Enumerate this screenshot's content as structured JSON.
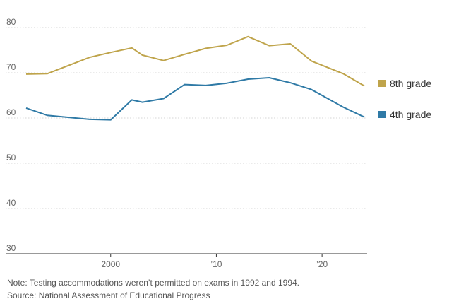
{
  "chart_data": {
    "type": "line",
    "x_ticks": [
      {
        "x": 2000,
        "label": "2000"
      },
      {
        "x": 2010,
        "label": "’10"
      },
      {
        "x": 2020,
        "label": "’20"
      }
    ],
    "ylim": [
      30,
      80
    ],
    "xlim": [
      1992,
      2024
    ],
    "y_ticks": [
      30,
      40,
      50,
      60,
      70,
      80
    ],
    "grid": true,
    "legend_position": "right",
    "series": [
      {
        "name": "8th grade",
        "color": "#bfa44b",
        "points": [
          [
            1992,
            69.7
          ],
          [
            1994,
            69.8
          ],
          [
            1998,
            73.4
          ],
          [
            2000,
            74.5
          ],
          [
            2002,
            75.5
          ],
          [
            2003,
            73.9
          ],
          [
            2005,
            72.7
          ],
          [
            2007,
            74.1
          ],
          [
            2009,
            75.4
          ],
          [
            2011,
            76.1
          ],
          [
            2013,
            78.0
          ],
          [
            2015,
            76.0
          ],
          [
            2017,
            76.4
          ],
          [
            2019,
            72.6
          ],
          [
            2022,
            69.8
          ],
          [
            2024,
            67.1
          ]
        ]
      },
      {
        "name": "4th grade",
        "color": "#2f7aa6",
        "points": [
          [
            1992,
            62.2
          ],
          [
            1994,
            60.6
          ],
          [
            1998,
            59.7
          ],
          [
            2000,
            59.6
          ],
          [
            2002,
            64.0
          ],
          [
            2003,
            63.5
          ],
          [
            2005,
            64.3
          ],
          [
            2007,
            67.4
          ],
          [
            2009,
            67.2
          ],
          [
            2011,
            67.7
          ],
          [
            2013,
            68.6
          ],
          [
            2015,
            68.9
          ],
          [
            2017,
            67.8
          ],
          [
            2019,
            66.3
          ],
          [
            2022,
            62.4
          ],
          [
            2024,
            60.2
          ]
        ]
      }
    ]
  },
  "footer": {
    "note": "Note: Testing accommodations weren’t permitted on exams in 1992 and 1994.",
    "source": "Source: National Assessment of Educational Progress"
  }
}
